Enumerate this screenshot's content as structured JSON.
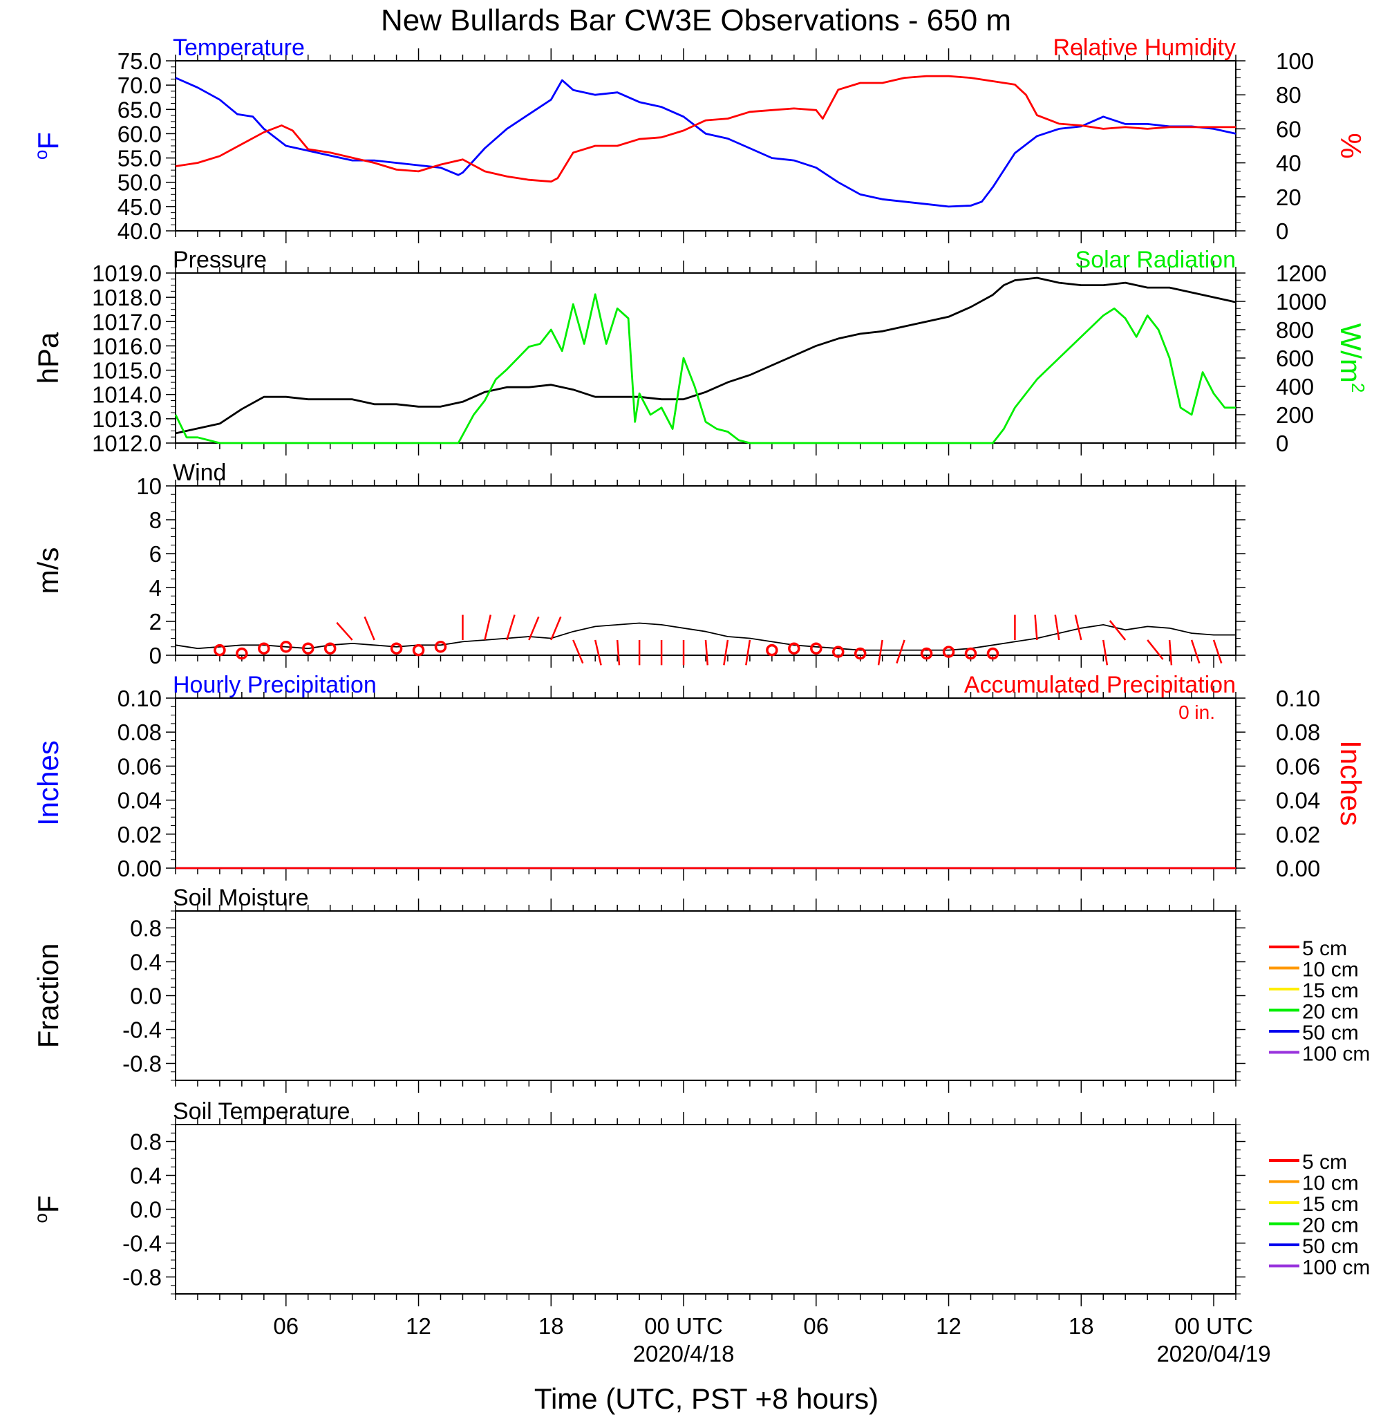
{
  "title": "New Bullards Bar CW3E Observations - 650 m",
  "xlabel": "Time (UTC, PST +8 hours)",
  "colors": {
    "temperature": "#0000ff",
    "humidity": "#ff0000",
    "pressure": "#000000",
    "solar": "#00ee00",
    "wind": "#000000",
    "barb": "#ff0000",
    "precip_hourly": "#0000ff",
    "precip_accum": "#ff0000",
    "depth_colors": [
      "#ff0000",
      "#ff9900",
      "#ffee00",
      "#00ee00",
      "#0000ee",
      "#9933dd"
    ]
  },
  "x_axis": {
    "range_hours": [
      0,
      48
    ],
    "ticks": [
      {
        "h": 5,
        "label": "06"
      },
      {
        "h": 11,
        "label": "12"
      },
      {
        "h": 17,
        "label": "18"
      },
      {
        "h": 23,
        "label": "00 UTC"
      },
      {
        "h": 29,
        "label": "06"
      },
      {
        "h": 35,
        "label": "12"
      },
      {
        "h": 41,
        "label": "18"
      },
      {
        "h": 47,
        "label": "00 UTC"
      }
    ],
    "date_labels": [
      {
        "h": 23,
        "label": "2020/4/18"
      },
      {
        "h": 47,
        "label": "2020/04/19"
      }
    ]
  },
  "chart_data": [
    {
      "type": "line",
      "panel": "temp_rh",
      "left_title": "Temperature",
      "right_title": "Relative Humidity",
      "ylabel_left": "oF",
      "ylabel_right": "%",
      "ylim_left": [
        40,
        75
      ],
      "yticks_left": [
        "40.0",
        "45.0",
        "50.0",
        "55.0",
        "60.0",
        "65.0",
        "70.0",
        "75.0"
      ],
      "ylim_right": [
        0,
        100
      ],
      "yticks_right": [
        "0",
        "20",
        "40",
        "60",
        "80",
        "100"
      ],
      "series": [
        {
          "axis": "left",
          "x": [
            0,
            1,
            2,
            2.8,
            3.5,
            4,
            5,
            6,
            7,
            8,
            9,
            10,
            11,
            12,
            12.8,
            13,
            14,
            15,
            16,
            17,
            17.5,
            18,
            19,
            20,
            21,
            22,
            23,
            24,
            25,
            26,
            27,
            28,
            29,
            30,
            31,
            32,
            33,
            34,
            35,
            36,
            36.5,
            37,
            38,
            39,
            40,
            41,
            42,
            43,
            44,
            45,
            46,
            47,
            48
          ],
          "y": [
            71.5,
            69.5,
            67,
            64,
            63.5,
            61,
            57.5,
            56.5,
            55.5,
            54.5,
            54.5,
            54,
            53.5,
            53,
            51.5,
            52,
            57,
            61,
            64,
            67,
            71,
            69,
            68,
            68.5,
            66.5,
            65.5,
            63.5,
            60,
            59,
            57,
            55,
            54.5,
            53,
            50,
            47.5,
            46.5,
            46,
            45.5,
            45,
            45.2,
            46,
            49,
            56,
            59.5,
            61,
            61.5,
            63.5,
            62,
            62,
            61.5,
            61.5,
            61,
            60
          ]
        },
        {
          "axis": "right",
          "x": [
            0,
            1,
            2,
            3,
            4,
            4.8,
            5.3,
            6,
            7,
            8,
            9,
            10,
            11,
            12,
            13,
            14,
            15,
            16,
            17,
            17.3,
            18,
            19,
            20,
            21,
            22,
            23,
            24,
            25,
            26,
            27,
            28,
            29,
            29.3,
            30,
            31,
            32,
            33,
            34,
            35,
            36,
            37,
            38,
            38.5,
            39,
            40,
            41,
            42,
            43,
            44,
            45,
            46,
            47,
            48
          ],
          "y": [
            38,
            40,
            44,
            51,
            58,
            62,
            59,
            48,
            46,
            43,
            40,
            36,
            35,
            39,
            42,
            35,
            32,
            30,
            29,
            31,
            46,
            50,
            50,
            54,
            55,
            59,
            65,
            66,
            70,
            71,
            72,
            71,
            66,
            83,
            87,
            87,
            90,
            91,
            91,
            90,
            88,
            86,
            80,
            68,
            63,
            62,
            60,
            61,
            60,
            61,
            61,
            61,
            61
          ]
        }
      ]
    },
    {
      "type": "line",
      "panel": "pressure_solar",
      "left_title": "Pressure",
      "right_title": "Solar Radiation",
      "ylabel_left": "hPa",
      "ylabel_right": "W/m2",
      "ylim_left": [
        1012,
        1019
      ],
      "yticks_left": [
        "1012.0",
        "1013.0",
        "1014.0",
        "1015.0",
        "1016.0",
        "1017.0",
        "1018.0",
        "1019.0"
      ],
      "ylim_right": [
        0,
        1200
      ],
      "yticks_right": [
        "0",
        "200",
        "400",
        "600",
        "800",
        "1000",
        "1200"
      ],
      "series": [
        {
          "axis": "left",
          "x": [
            0,
            1,
            2,
            3,
            4,
            5,
            6,
            7,
            8,
            9,
            10,
            11,
            12,
            13,
            14,
            15,
            16,
            17,
            18,
            19,
            20,
            21,
            22,
            23,
            24,
            25,
            26,
            27,
            28,
            29,
            30,
            31,
            32,
            33,
            34,
            35,
            36,
            37,
            37.5,
            38,
            39,
            40,
            41,
            42,
            43,
            44,
            45,
            46,
            47,
            48
          ],
          "y": [
            1012.4,
            1012.6,
            1012.8,
            1013.4,
            1013.9,
            1013.9,
            1013.8,
            1013.8,
            1013.8,
            1013.6,
            1013.6,
            1013.5,
            1013.5,
            1013.7,
            1014.1,
            1014.3,
            1014.3,
            1014.4,
            1014.2,
            1013.9,
            1013.9,
            1013.9,
            1013.8,
            1013.8,
            1014.1,
            1014.5,
            1014.8,
            1015.2,
            1015.6,
            1016,
            1016.3,
            1016.5,
            1016.6,
            1016.8,
            1017,
            1017.2,
            1017.6,
            1018.1,
            1018.5,
            1018.7,
            1018.8,
            1018.6,
            1018.5,
            1018.5,
            1018.6,
            1018.4,
            1018.4,
            1018.2,
            1018,
            1017.8
          ]
        },
        {
          "axis": "right",
          "x": [
            0,
            0.5,
            1,
            2,
            3,
            4,
            5,
            6,
            7,
            8,
            9,
            10,
            11,
            12,
            12.8,
            13.5,
            14,
            14.5,
            15,
            15.5,
            16,
            16.5,
            17,
            17.5,
            18,
            18.5,
            19,
            19.5,
            20,
            20.5,
            20.8,
            21,
            21.5,
            22,
            22.5,
            23,
            23.5,
            24,
            24.5,
            25,
            25.5,
            26,
            27,
            28,
            29,
            30,
            31,
            32,
            33,
            34,
            35,
            36,
            37,
            37.5,
            38,
            39,
            40,
            41,
            42,
            42.5,
            43,
            43.5,
            44,
            44.5,
            45,
            45.5,
            46,
            46.5,
            47,
            47.5,
            48
          ],
          "y": [
            200,
            40,
            40,
            0,
            0,
            0,
            0,
            0,
            0,
            0,
            0,
            0,
            0,
            0,
            0,
            200,
            300,
            450,
            520,
            600,
            680,
            700,
            800,
            650,
            980,
            700,
            1050,
            700,
            950,
            880,
            150,
            350,
            200,
            250,
            100,
            600,
            400,
            150,
            100,
            80,
            20,
            0,
            0,
            0,
            0,
            0,
            0,
            0,
            0,
            0,
            0,
            0,
            0,
            100,
            250,
            450,
            600,
            750,
            900,
            950,
            880,
            750,
            900,
            800,
            600,
            250,
            200,
            500,
            350,
            250,
            250
          ]
        }
      ]
    },
    {
      "type": "line",
      "panel": "wind",
      "left_title": "Wind",
      "ylabel_left": "m/s",
      "ylim_left": [
        0,
        10
      ],
      "yticks_left": [
        "0",
        "2",
        "4",
        "6",
        "8",
        "10"
      ],
      "series": [
        {
          "axis": "left",
          "x": [
            0,
            1,
            2,
            3,
            4,
            5,
            6,
            7,
            8,
            9,
            10,
            11,
            12,
            13,
            14,
            15,
            16,
            17,
            18,
            19,
            20,
            21,
            22,
            23,
            24,
            25,
            26,
            27,
            28,
            29,
            30,
            31,
            32,
            33,
            34,
            35,
            36,
            37,
            38,
            39,
            40,
            41,
            42,
            43,
            44,
            45,
            46,
            47,
            48
          ],
          "y": [
            0.6,
            0.4,
            0.5,
            0.6,
            0.6,
            0.5,
            0.4,
            0.6,
            0.7,
            0.6,
            0.5,
            0.6,
            0.6,
            0.8,
            0.9,
            1.0,
            1.1,
            1.0,
            1.4,
            1.7,
            1.8,
            1.9,
            1.8,
            1.6,
            1.4,
            1.1,
            1.0,
            0.8,
            0.6,
            0.5,
            0.4,
            0.3,
            0.3,
            0.3,
            0.3,
            0.3,
            0.4,
            0.6,
            0.8,
            1.0,
            1.3,
            1.6,
            1.8,
            1.5,
            1.7,
            1.6,
            1.3,
            1.2,
            1.2
          ]
        }
      ],
      "barbs": [
        {
          "h": 2,
          "calm": true,
          "s": 0.3
        },
        {
          "h": 3,
          "calm": true,
          "s": 0.1
        },
        {
          "h": 4,
          "calm": true,
          "s": 0.4
        },
        {
          "h": 5,
          "calm": true,
          "s": 0.5
        },
        {
          "h": 6,
          "calm": true,
          "s": 0.4
        },
        {
          "h": 7,
          "calm": true,
          "s": 0.4
        },
        {
          "h": 8,
          "dx": -0.8,
          "dy": 0.9
        },
        {
          "h": 9,
          "dx": -0.5,
          "dy": 1.2
        },
        {
          "h": 10,
          "calm": true,
          "s": 0.4
        },
        {
          "h": 11,
          "calm": true,
          "s": 0.3
        },
        {
          "h": 12,
          "calm": true,
          "s": 0.5
        },
        {
          "h": 13,
          "dx": 0,
          "dy": 1.3
        },
        {
          "h": 14,
          "dx": 0.3,
          "dy": 1.3
        },
        {
          "h": 15,
          "dx": 0.4,
          "dy": 1.3
        },
        {
          "h": 16,
          "dx": 0.5,
          "dy": 1.2
        },
        {
          "h": 17,
          "dx": 0.5,
          "dy": 1.2
        },
        {
          "h": 18,
          "dx": 0.5,
          "dy": -1.2
        },
        {
          "h": 19,
          "dx": 0.3,
          "dy": -1.3
        },
        {
          "h": 20,
          "dx": 0.1,
          "dy": -1.3
        },
        {
          "h": 21,
          "dx": 0.0,
          "dy": -1.3
        },
        {
          "h": 22,
          "dx": 0,
          "dy": -1.3
        },
        {
          "h": 23,
          "dx": 0,
          "dy": -1.3
        },
        {
          "h": 24,
          "dx": 0.1,
          "dy": -1.3
        },
        {
          "h": 25,
          "dx": -0.2,
          "dy": -1.3
        },
        {
          "h": 26,
          "dx": -0.2,
          "dy": -1.3
        },
        {
          "h": 27,
          "calm": true,
          "s": 0.3
        },
        {
          "h": 28,
          "calm": true,
          "s": 0.4
        },
        {
          "h": 29,
          "calm": true,
          "s": 0.4
        },
        {
          "h": 30,
          "calm": true,
          "s": 0.2
        },
        {
          "h": 31,
          "calm": true,
          "s": 0.1
        },
        {
          "h": 32,
          "dx": -0.2,
          "dy": -1.3
        },
        {
          "h": 33,
          "dx": -0.4,
          "dy": -1.2
        },
        {
          "h": 34,
          "calm": true,
          "s": 0.1
        },
        {
          "h": 35,
          "calm": true,
          "s": 0.2
        },
        {
          "h": 36,
          "calm": true,
          "s": 0.1
        },
        {
          "h": 37,
          "calm": true,
          "s": 0.1
        },
        {
          "h": 38,
          "dx": 0,
          "dy": 1.3
        },
        {
          "h": 39,
          "dx": -0.1,
          "dy": 1.3
        },
        {
          "h": 40,
          "dx": -0.2,
          "dy": 1.3
        },
        {
          "h": 41,
          "dx": -0.3,
          "dy": 1.3
        },
        {
          "h": 42,
          "dx": 0.2,
          "dy": -1.3
        },
        {
          "h": 43,
          "dx": -0.8,
          "dy": 1.0
        },
        {
          "h": 44,
          "dx": 0.8,
          "dy": -1.0
        },
        {
          "h": 45,
          "dx": 0.1,
          "dy": -1.3
        },
        {
          "h": 46,
          "dx": 0.4,
          "dy": -1.2
        },
        {
          "h": 47,
          "dx": 0.4,
          "dy": -1.2
        }
      ]
    },
    {
      "type": "line",
      "panel": "precip",
      "left_title": "Hourly Precipitation",
      "right_title": "Accumulated Precipitation",
      "accum_total": "0 in.",
      "ylabel_left": "Inches",
      "ylabel_right": "Inches",
      "ylim_left": [
        0,
        0.1
      ],
      "yticks_left": [
        "0.00",
        "0.02",
        "0.04",
        "0.06",
        "0.08",
        "0.10"
      ],
      "ylim_right": [
        0,
        0.1
      ],
      "yticks_right": [
        "0.00",
        "0.02",
        "0.04",
        "0.06",
        "0.08",
        "0.10"
      ],
      "series": [
        {
          "axis": "left",
          "x": [
            0,
            48
          ],
          "y": [
            0,
            0
          ]
        },
        {
          "axis": "right",
          "x": [
            0,
            48
          ],
          "y": [
            0,
            0
          ]
        }
      ]
    },
    {
      "type": "line",
      "panel": "soil_moisture",
      "left_title": "Soil Moisture",
      "ylabel_left": "Fraction",
      "ylim_left": [
        -1,
        1
      ],
      "yticks_left": [
        "-0.8",
        "-0.4",
        "0.0",
        "0.4",
        "0.8"
      ],
      "legend": [
        "5 cm",
        "10 cm",
        "15 cm",
        "20 cm",
        "50 cm",
        "100 cm"
      ],
      "series": []
    },
    {
      "type": "line",
      "panel": "soil_temp",
      "left_title": "Soil Temperature",
      "ylabel_left": "oF",
      "ylim_left": [
        -1,
        1
      ],
      "yticks_left": [
        "-0.8",
        "-0.4",
        "0.0",
        "0.4",
        "0.8"
      ],
      "legend": [
        "5 cm",
        "10 cm",
        "15 cm",
        "20 cm",
        "50 cm",
        "100 cm"
      ],
      "series": []
    }
  ]
}
